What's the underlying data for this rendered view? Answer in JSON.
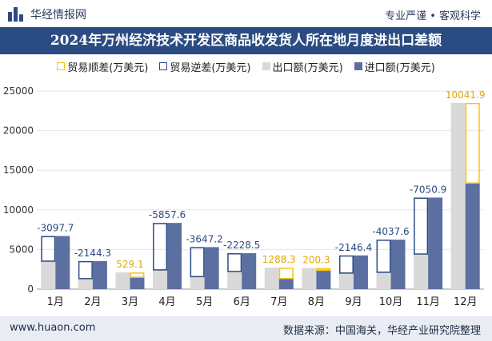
{
  "header": {
    "brand": "华经情报网",
    "tagline": "专业严谨 • 客观科学",
    "title": "2024年万州经济技术开发区商品收发货人所在地月度进出口差额"
  },
  "colors": {
    "surplus": "#f5c518",
    "deficit": "#2b4c82",
    "export": "#d9d9d9",
    "import": "#5b6fa0",
    "title_bg": "#2b4c82"
  },
  "footer": {
    "url": "www.huaon.com",
    "source": "数据来源：中国海关，华经产业研究院整理"
  },
  "chart_data": {
    "type": "bar",
    "title": "2024年万州经济技术开发区商品收发货人所在地月度进出口差额",
    "categories": [
      "1月",
      "2月",
      "3月",
      "4月",
      "5月",
      "6月",
      "7月",
      "8月",
      "9月",
      "10月",
      "11月",
      "12月"
    ],
    "ylim": [
      0,
      25000
    ],
    "yticks": [
      0,
      5000,
      10000,
      15000,
      20000,
      25000
    ],
    "legend_position": "top",
    "series": [
      {
        "name": "贸易顺差(万美元)",
        "key": "surplus"
      },
      {
        "name": "贸易逆差(万美元)",
        "key": "deficit"
      },
      {
        "name": "出口额(万美元)",
        "key": "export",
        "values": [
          3600,
          1400,
          2100,
          2500,
          1650,
          2300,
          2700,
          2650,
          2100,
          2200,
          4500,
          23500
        ]
      },
      {
        "name": "进口额(万美元)",
        "key": "import",
        "values": [
          6700,
          3540,
          1570,
          8350,
          5300,
          4530,
          1410,
          2450,
          4250,
          6240,
          11550,
          13460
        ]
      }
    ],
    "balance_labels": [
      "-3097.7",
      "-2144.3",
      "529.1",
      "-5857.6",
      "-3647.2",
      "-2228.5",
      "1288.3",
      "200.3",
      "-2146.4",
      "-4037.6",
      "-7050.9",
      "10041.9"
    ],
    "balance_types": [
      "deficit",
      "deficit",
      "surplus",
      "deficit",
      "deficit",
      "deficit",
      "surplus",
      "surplus",
      "deficit",
      "deficit",
      "deficit",
      "surplus"
    ]
  }
}
